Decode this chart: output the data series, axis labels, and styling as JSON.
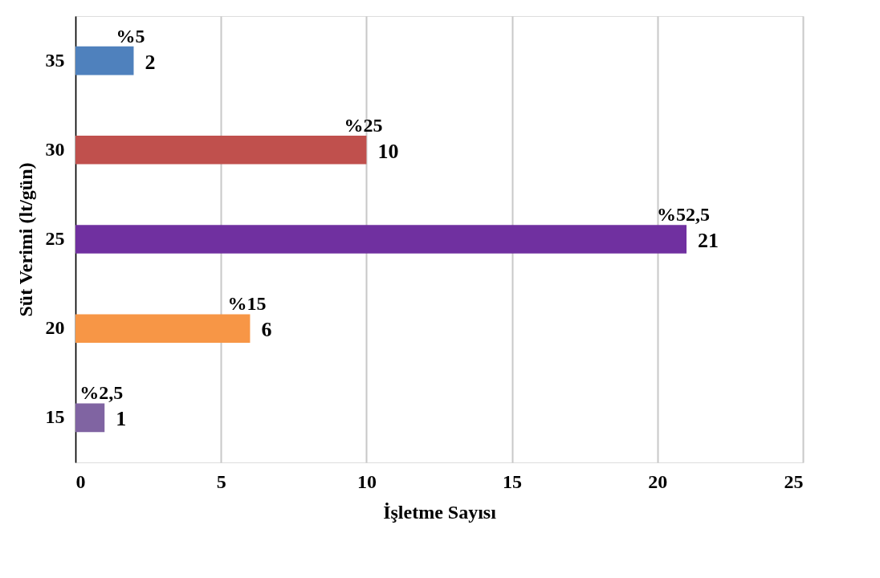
{
  "chart_data": {
    "type": "bar",
    "orientation": "horizontal",
    "xlabel": "İşletme Sayısı",
    "ylabel": "Süt Verimi (lt/gün)",
    "categories": [
      "35",
      "30",
      "25",
      "20",
      "15"
    ],
    "values": [
      2,
      10,
      21,
      6,
      1
    ],
    "colors": [
      "#4f81bd",
      "#c0504d",
      "#7030a0",
      "#f79646",
      "#8064a2"
    ],
    "xlim": [
      0,
      25
    ],
    "xticks": [
      0,
      5,
      10,
      15,
      20,
      25
    ],
    "grid": "x",
    "data_labels": true,
    "annotations": [
      {
        "text": "%5",
        "x": 2,
        "y": "35"
      },
      {
        "text": "%25",
        "x": 10,
        "y": "30"
      },
      {
        "text": "%52,5",
        "x": 21,
        "y": "25"
      },
      {
        "text": "%15",
        "x": 6,
        "y": "20"
      },
      {
        "text": "%2,5",
        "x": 1,
        "y": "15"
      }
    ]
  }
}
